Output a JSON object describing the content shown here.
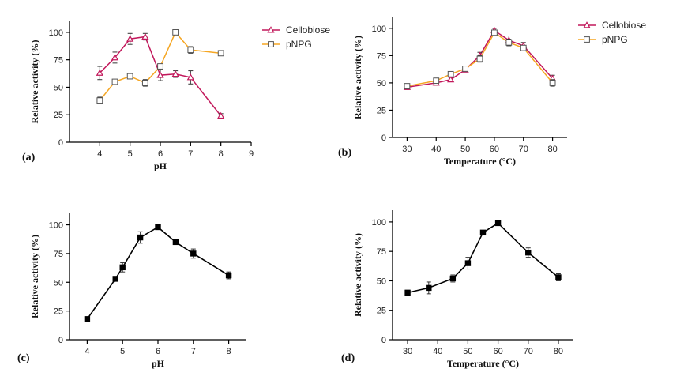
{
  "chart_data": [
    {
      "type": "line",
      "panel_label": "(a)",
      "xlabel": "pH",
      "ylabel": "Relative activity (%)",
      "xlim": [
        3,
        9
      ],
      "ylim": [
        0,
        110
      ],
      "xticks": [
        4,
        5,
        6,
        7,
        8,
        9
      ],
      "yticks": [
        0,
        25,
        50,
        75,
        100
      ],
      "legend_position": "top-right outside",
      "series": [
        {
          "name": "Cellobiose",
          "color": "#c2185b",
          "marker": "triangle",
          "x": [
            4,
            4.5,
            5,
            5.5,
            6,
            6.5,
            7,
            8
          ],
          "y": [
            63,
            77,
            94,
            96,
            61,
            62,
            59,
            24
          ],
          "err": [
            6,
            5,
            5,
            3,
            5,
            3,
            6,
            2
          ]
        },
        {
          "name": "pNPG",
          "color": "#f5a623",
          "marker": "square",
          "x": [
            4,
            4.5,
            5,
            5.5,
            6,
            6.5,
            7,
            8
          ],
          "y": [
            38,
            55,
            60,
            54,
            69,
            100,
            84,
            81
          ],
          "err": [
            3,
            2,
            2,
            3,
            2,
            1,
            3,
            2
          ]
        }
      ]
    },
    {
      "type": "line",
      "panel_label": "(b)",
      "xlabel": "Temperature (°C)",
      "ylabel": "Relative activity (%)",
      "xlim": [
        25,
        85
      ],
      "ylim": [
        0,
        110
      ],
      "xticks": [
        30,
        40,
        50,
        60,
        70,
        80
      ],
      "yticks": [
        0,
        25,
        50,
        75,
        100
      ],
      "legend_position": "top-right outside",
      "series": [
        {
          "name": "Cellobiose",
          "color": "#c2185b",
          "marker": "triangle",
          "x": [
            30,
            40,
            45,
            50,
            55,
            60,
            65,
            70,
            80
          ],
          "y": [
            46,
            50,
            53,
            62,
            75,
            98,
            89,
            84,
            54
          ],
          "err": [
            2,
            2,
            2,
            2,
            3,
            2,
            4,
            3,
            3
          ]
        },
        {
          "name": "pNPG",
          "color": "#f5a623",
          "marker": "square",
          "x": [
            30,
            40,
            45,
            50,
            55,
            60,
            65,
            70,
            80
          ],
          "y": [
            47,
            52,
            58,
            63,
            72,
            96,
            87,
            82,
            50
          ],
          "err": [
            2,
            2,
            2,
            2,
            3,
            2,
            3,
            2,
            3
          ]
        }
      ]
    },
    {
      "type": "line",
      "panel_label": "(c)",
      "xlabel": "pH",
      "ylabel": "Relative activity (%)",
      "xlim": [
        3.5,
        8.5
      ],
      "ylim": [
        0,
        110
      ],
      "xticks": [
        4,
        5,
        6,
        7,
        8
      ],
      "yticks": [
        0,
        25,
        50,
        75,
        100
      ],
      "series": [
        {
          "name": "",
          "color": "#000000",
          "marker": "square",
          "x": [
            4,
            4.8,
            5,
            5.5,
            6,
            6.5,
            7,
            8
          ],
          "y": [
            18,
            53,
            63,
            89,
            98,
            85,
            75,
            56
          ],
          "err": [
            2,
            2,
            4,
            5,
            1,
            2,
            4,
            3
          ]
        }
      ]
    },
    {
      "type": "line",
      "panel_label": "(d)",
      "xlabel": "Temperature (°C)",
      "ylabel": "Relative activity (%)",
      "xlim": [
        25,
        85
      ],
      "ylim": [
        0,
        110
      ],
      "xticks": [
        30,
        40,
        50,
        60,
        70,
        80
      ],
      "yticks": [
        0,
        25,
        50,
        75,
        100
      ],
      "series": [
        {
          "name": "",
          "color": "#000000",
          "marker": "square",
          "x": [
            30,
            37,
            45,
            50,
            55,
            60,
            70,
            80
          ],
          "y": [
            40,
            44,
            52,
            65,
            91,
            99,
            74,
            53
          ],
          "err": [
            2,
            5,
            3,
            5,
            1,
            1,
            4,
            3
          ]
        }
      ]
    }
  ]
}
